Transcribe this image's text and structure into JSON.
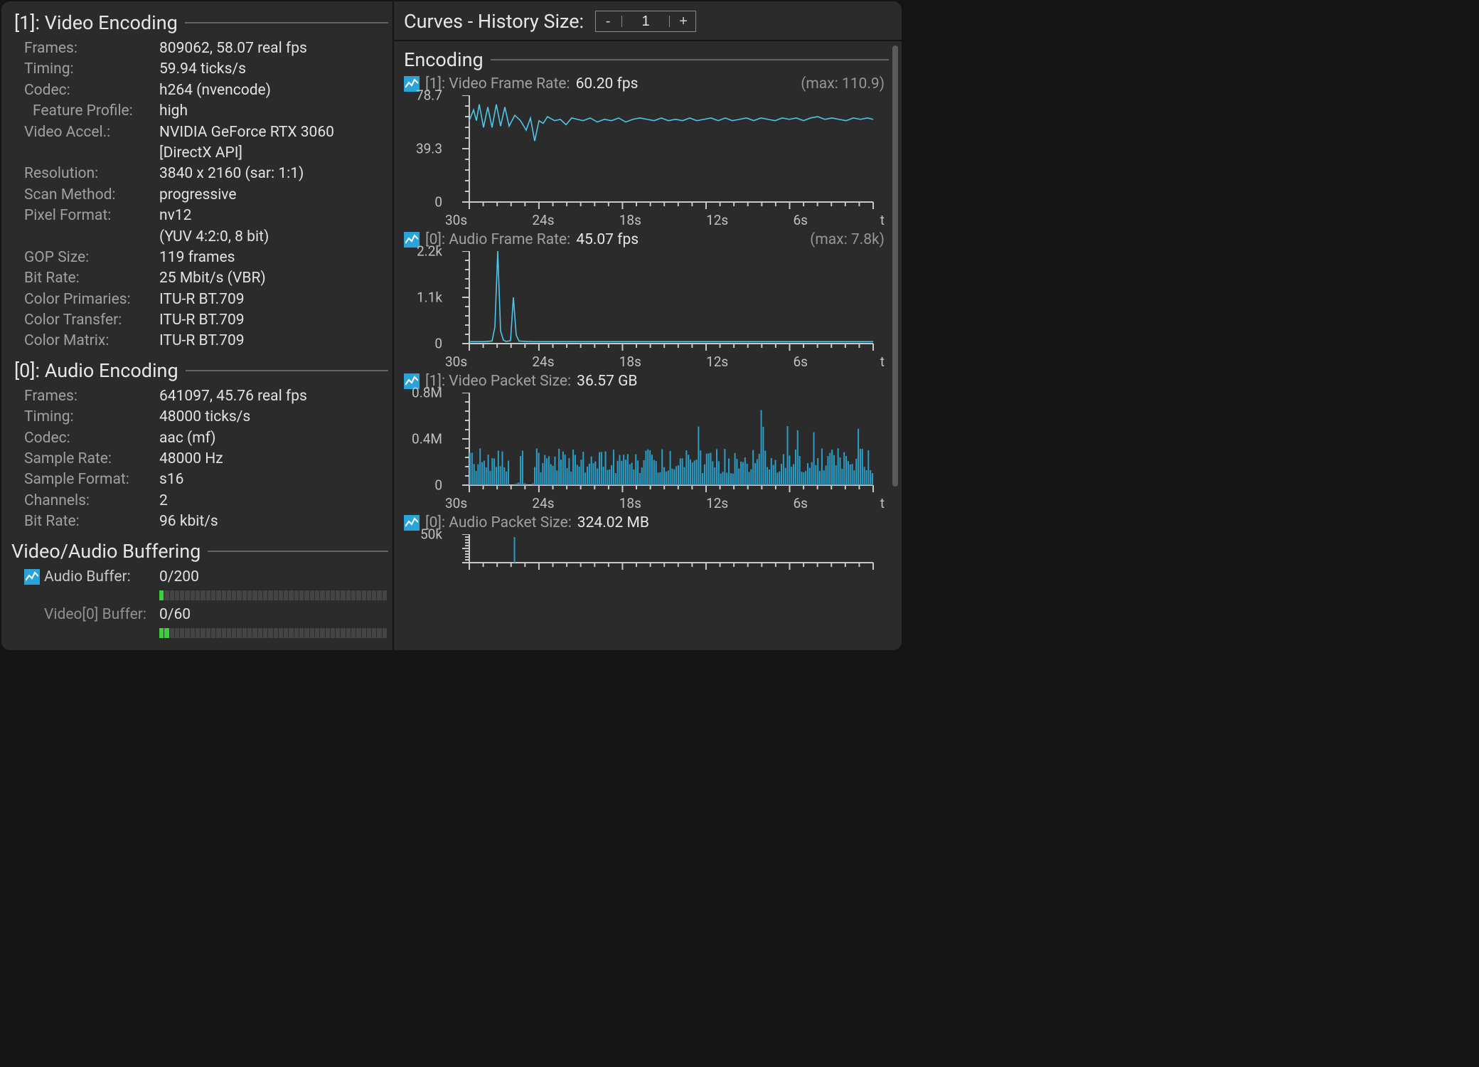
{
  "colors": {
    "panel_bg": "#2b2b2b",
    "window_border": "#151515",
    "text_bright": "#e6e6e6",
    "text_dim": "#a0a0a0",
    "rule": "#646464",
    "axis": "#c8c8c8",
    "tick": "#c8c8c8",
    "chart_stroke": "#4fc6e8",
    "chart_fill": "#2a9ec7",
    "icon_bg": "#2aa3d9",
    "buffer_off": "#444444",
    "buffer_on": "#3bd13b",
    "scrollbar": "#5a5a5a"
  },
  "left": {
    "video": {
      "title": "[1]: Video Encoding",
      "rows": [
        {
          "k": "Frames:",
          "v": "809062, 58.07 real fps"
        },
        {
          "k": "Timing:",
          "v": "59.94 ticks/s"
        },
        {
          "k": "Codec:",
          "v": "h264 (nvencode)"
        },
        {
          "k": "Feature Profile:",
          "v": "high",
          "indent": true
        },
        {
          "k": "Video Accel.:",
          "v": "NVIDIA GeForce RTX 3060"
        },
        {
          "k": "",
          "v": "[DirectX API]"
        },
        {
          "k": "Resolution:",
          "v": "3840 x 2160 (sar: 1:1)"
        },
        {
          "k": "Scan Method:",
          "v": "progressive"
        },
        {
          "k": "Pixel Format:",
          "v": "nv12"
        },
        {
          "k": "",
          "v": "(YUV 4:2:0, 8 bit)"
        },
        {
          "k": "GOP Size:",
          "v": "119 frames"
        },
        {
          "k": "Bit Rate:",
          "v": "25 Mbit/s (VBR)"
        },
        {
          "k": "Color Primaries:",
          "v": "ITU-R BT.709"
        },
        {
          "k": "Color Transfer:",
          "v": "ITU-R BT.709"
        },
        {
          "k": "Color Matrix:",
          "v": "ITU-R BT.709"
        }
      ]
    },
    "audio": {
      "title": "[0]: Audio Encoding",
      "rows": [
        {
          "k": "Frames:",
          "v": "641097, 45.76 real fps"
        },
        {
          "k": "Timing:",
          "v": "48000 ticks/s"
        },
        {
          "k": "Codec:",
          "v": "aac (mf)"
        },
        {
          "k": "Sample Rate:",
          "v": "48000 Hz"
        },
        {
          "k": "Sample Format:",
          "v": "s16"
        },
        {
          "k": "Channels:",
          "v": "2"
        },
        {
          "k": "Bit Rate:",
          "v": "96 kbit/s"
        }
      ]
    },
    "buffering": {
      "title": "Video/Audio Buffering",
      "audio_buffer": {
        "label": "Audio Buffer:",
        "value": "0/200",
        "segments": 44,
        "filled": 1,
        "has_icon": true
      },
      "video_buffer": {
        "label": "Video[0] Buffer:",
        "value": "0/60",
        "segments": 44,
        "filled": 2,
        "has_icon": false
      }
    }
  },
  "right": {
    "header": {
      "title": "Curves - History Size:",
      "value": "1",
      "minus": "-",
      "plus": "+"
    },
    "section_title": "Encoding",
    "charts": [
      {
        "id": "video-frame-rate",
        "label": "[1]: Video Frame Rate:",
        "value": "60.20 fps",
        "max": "(max: 110.9)",
        "type": "line",
        "height": 150,
        "y_ticks": [
          {
            "pos": 0.0,
            "label": "78.7"
          },
          {
            "pos": 0.5,
            "label": "39.3"
          },
          {
            "pos": 1.0,
            "label": "0"
          }
        ],
        "x_ticks": [
          "30s",
          "24s",
          "18s",
          "12s",
          "6s",
          "t"
        ],
        "stroke": "#4fc6e8",
        "stroke_width": 1.6,
        "bg": "#2b2b2b",
        "series": [
          [
            0,
            60
          ],
          [
            6,
            68
          ],
          [
            10,
            60
          ],
          [
            14,
            72
          ],
          [
            20,
            55
          ],
          [
            26,
            70
          ],
          [
            32,
            55
          ],
          [
            38,
            72
          ],
          [
            44,
            56
          ],
          [
            50,
            70
          ],
          [
            56,
            56
          ],
          [
            64,
            64
          ],
          [
            72,
            60
          ],
          [
            80,
            53
          ],
          [
            86,
            62
          ],
          [
            92,
            45
          ],
          [
            98,
            60
          ],
          [
            104,
            58
          ],
          [
            110,
            63
          ],
          [
            120,
            60
          ],
          [
            128,
            61
          ],
          [
            136,
            57
          ],
          [
            144,
            62
          ],
          [
            152,
            61
          ],
          [
            160,
            60
          ],
          [
            170,
            62
          ],
          [
            180,
            59
          ],
          [
            190,
            61
          ],
          [
            200,
            60
          ],
          [
            210,
            62
          ],
          [
            220,
            59
          ],
          [
            230,
            61
          ],
          [
            240,
            62
          ],
          [
            250,
            61
          ],
          [
            260,
            60
          ],
          [
            270,
            62
          ],
          [
            280,
            60
          ],
          [
            290,
            61
          ],
          [
            300,
            60
          ],
          [
            310,
            62
          ],
          [
            320,
            60
          ],
          [
            330,
            61
          ],
          [
            340,
            62
          ],
          [
            350,
            60
          ],
          [
            360,
            62
          ],
          [
            370,
            60
          ],
          [
            380,
            61
          ],
          [
            390,
            62
          ],
          [
            400,
            60
          ],
          [
            410,
            62
          ],
          [
            420,
            61
          ],
          [
            430,
            60
          ],
          [
            440,
            62
          ],
          [
            450,
            61
          ],
          [
            460,
            62
          ],
          [
            470,
            60
          ],
          [
            480,
            62
          ],
          [
            490,
            63
          ],
          [
            500,
            61
          ],
          [
            510,
            62
          ],
          [
            520,
            61
          ],
          [
            530,
            60
          ],
          [
            540,
            62
          ],
          [
            550,
            61
          ],
          [
            560,
            62
          ],
          [
            568,
            61
          ]
        ],
        "y_domain": [
          0,
          78.7
        ]
      },
      {
        "id": "audio-frame-rate",
        "label": "[0]: Audio Frame Rate:",
        "value": "45.07 fps",
        "max": "(max: 7.8k)",
        "type": "line",
        "height": 130,
        "y_ticks": [
          {
            "pos": 0.0,
            "label": "2.2k"
          },
          {
            "pos": 0.5,
            "label": "1.1k"
          },
          {
            "pos": 1.0,
            "label": "0"
          }
        ],
        "x_ticks": [
          "30s",
          "24s",
          "18s",
          "12s",
          "6s",
          "t"
        ],
        "stroke": "#4fc6e8",
        "stroke_width": 1.6,
        "bg": "#2b2b2b",
        "series": [
          [
            0,
            45
          ],
          [
            20,
            45
          ],
          [
            32,
            60
          ],
          [
            36,
            400
          ],
          [
            40,
            2200
          ],
          [
            44,
            300
          ],
          [
            48,
            80
          ],
          [
            52,
            50
          ],
          [
            58,
            70
          ],
          [
            62,
            1100
          ],
          [
            66,
            200
          ],
          [
            70,
            60
          ],
          [
            80,
            50
          ],
          [
            90,
            45
          ],
          [
            100,
            45
          ],
          [
            568,
            45
          ]
        ],
        "y_domain": [
          0,
          2200
        ]
      },
      {
        "id": "video-packet-size",
        "label": "[1]: Video Packet Size:",
        "value": "36.57 GB",
        "max": "",
        "type": "bars",
        "height": 130,
        "y_ticks": [
          {
            "pos": 0.0,
            "label": "0.8M"
          },
          {
            "pos": 0.5,
            "label": "0.4M"
          },
          {
            "pos": 1.0,
            "label": "0"
          }
        ],
        "x_ticks": [
          "30s",
          "24s",
          "18s",
          "12s",
          "6s",
          "t"
        ],
        "fill": "#2a9ec7",
        "bg": "#2b2b2b",
        "bar_width": 2.0,
        "n_bars": 200,
        "y_domain": [
          0,
          0.8
        ]
      },
      {
        "id": "audio-packet-size",
        "label": "[0]: Audio Packet Size:",
        "value": "324.02 MB",
        "max": "",
        "type": "bars",
        "height": 40,
        "y_ticks": [
          {
            "pos": 0.0,
            "label": "50k"
          }
        ],
        "x_ticks": [],
        "fill": "#2a9ec7",
        "bg": "#2b2b2b",
        "bar_width": 2.0,
        "n_bars": 200,
        "y_domain": [
          0,
          50
        ],
        "partial": true
      }
    ]
  }
}
